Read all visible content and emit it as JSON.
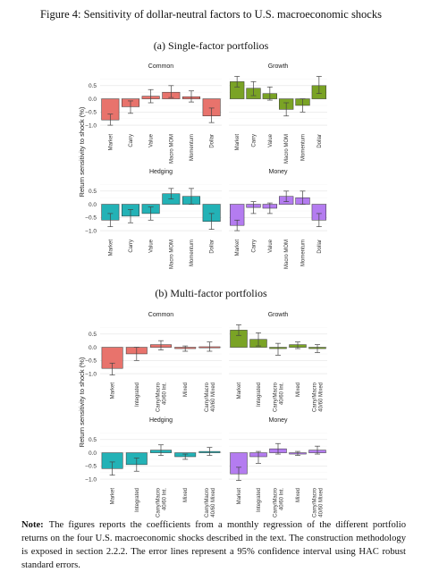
{
  "figure_title": "Figure 4:  Sensitivity of dollar-neutral factors to U.S. macroeconomic shocks",
  "sections": [
    {
      "label": "(a) Single-factor portfolios"
    },
    {
      "label": "(b) Multi-factor portfolios"
    }
  ],
  "ylabel": "Return sensitivity to shock (%)",
  "yticks": [
    "0.5",
    "0.0",
    "−0.5",
    "−1.0"
  ],
  "note": {
    "label": "Note:",
    "text": "The figures reports the coefficients from a monthly regression of the different portfolio returns on the four U.S. macroeconomic shocks described in the text. The construction methodology is exposed in section 2.2.2. The error lines represent a 95% confidence interval using HAC robust standard errors."
  },
  "colors": {
    "Common": "#e8736c",
    "Growth": "#7aa325",
    "Hedging": "#23b2b6",
    "Money": "#b47cf0"
  },
  "chart_data": [
    {
      "type": "bar",
      "section": "(a) Single-factor portfolios",
      "ylim": [
        -1.2,
        0.9
      ],
      "grid": true,
      "categories": [
        "Market",
        "Carry",
        "Value",
        "Macro MOM",
        "Momentum",
        "Dollar"
      ],
      "panels": [
        {
          "title": "Common",
          "color": "#e8736c",
          "values": [
            -0.8,
            -0.3,
            0.1,
            0.25,
            0.08,
            -0.65
          ],
          "ci": [
            [
              -1.0,
              -0.58
            ],
            [
              -0.55,
              -0.08
            ],
            [
              -0.15,
              0.35
            ],
            [
              0.05,
              0.5
            ],
            [
              -0.12,
              0.3
            ],
            [
              -0.9,
              -0.35
            ]
          ]
        },
        {
          "title": "Growth",
          "color": "#7aa325",
          "values": [
            0.65,
            0.4,
            0.2,
            -0.4,
            -0.25,
            0.5
          ],
          "ci": [
            [
              0.45,
              0.85
            ],
            [
              0.12,
              0.65
            ],
            [
              -0.05,
              0.45
            ],
            [
              -0.65,
              -0.15
            ],
            [
              -0.5,
              0.0
            ],
            [
              0.2,
              0.85
            ]
          ]
        },
        {
          "title": "Hedging",
          "color": "#23b2b6",
          "values": [
            -0.6,
            -0.45,
            -0.35,
            0.4,
            0.3,
            -0.65
          ],
          "ci": [
            [
              -0.85,
              -0.35
            ],
            [
              -0.7,
              -0.2
            ],
            [
              -0.6,
              -0.1
            ],
            [
              0.2,
              0.6
            ],
            [
              0.0,
              0.6
            ],
            [
              -0.95,
              -0.35
            ]
          ]
        },
        {
          "title": "Money",
          "color": "#b47cf0",
          "values": [
            -0.8,
            -0.12,
            -0.15,
            0.3,
            0.25,
            -0.6
          ],
          "ci": [
            [
              -1.0,
              -0.6
            ],
            [
              -0.35,
              0.1
            ],
            [
              -0.35,
              0.05
            ],
            [
              0.1,
              0.5
            ],
            [
              0.0,
              0.5
            ],
            [
              -0.85,
              -0.35
            ]
          ]
        }
      ]
    },
    {
      "type": "bar",
      "section": "(b) Multi-factor portfolios",
      "ylim": [
        -1.2,
        0.9
      ],
      "grid": true,
      "categories": [
        "Market",
        "Integrated",
        "Carry/Macro\n40/60 Int.",
        "Mixed",
        "Carry/Macro\n40/60 Mixed"
      ],
      "panels": [
        {
          "title": "Common",
          "color": "#e8736c",
          "values": [
            -0.8,
            -0.25,
            0.1,
            -0.05,
            0.02
          ],
          "ci": [
            [
              -1.05,
              -0.6
            ],
            [
              -0.5,
              0.0
            ],
            [
              -0.1,
              0.25
            ],
            [
              -0.15,
              0.05
            ],
            [
              -0.15,
              0.2
            ]
          ]
        },
        {
          "title": "Growth",
          "color": "#7aa325",
          "values": [
            0.65,
            0.3,
            -0.05,
            0.1,
            -0.05
          ],
          "ci": [
            [
              0.45,
              0.85
            ],
            [
              0.05,
              0.55
            ],
            [
              -0.3,
              0.15
            ],
            [
              -0.05,
              0.2
            ],
            [
              -0.2,
              0.1
            ]
          ]
        },
        {
          "title": "Hedging",
          "color": "#23b2b6",
          "values": [
            -0.6,
            -0.45,
            0.1,
            -0.15,
            0.05
          ],
          "ci": [
            [
              -0.85,
              -0.35
            ],
            [
              -0.7,
              -0.2
            ],
            [
              -0.1,
              0.3
            ],
            [
              -0.25,
              -0.05
            ],
            [
              -0.1,
              0.2
            ]
          ]
        },
        {
          "title": "Money",
          "color": "#b47cf0",
          "values": [
            -0.8,
            -0.15,
            0.15,
            -0.05,
            0.1
          ],
          "ci": [
            [
              -1.05,
              -0.55
            ],
            [
              -0.4,
              0.05
            ],
            [
              -0.05,
              0.35
            ],
            [
              -0.1,
              0.05
            ],
            [
              -0.05,
              0.25
            ]
          ]
        }
      ]
    }
  ]
}
